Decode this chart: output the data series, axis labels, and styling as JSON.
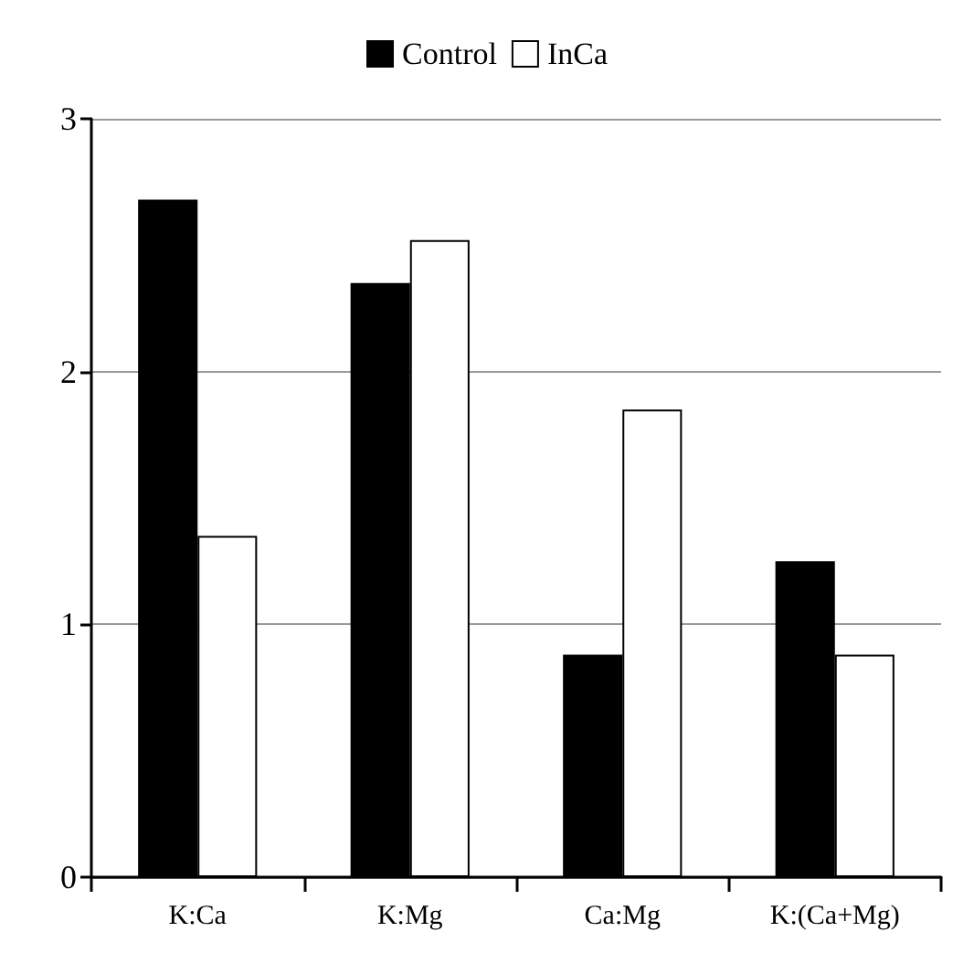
{
  "chart_data": {
    "type": "bar",
    "categories": [
      "K:Ca",
      "K:Mg",
      "Ca:Mg",
      "K:(Ca+Mg)"
    ],
    "series": [
      {
        "name": "Control",
        "color": "#000000",
        "values": [
          2.68,
          2.35,
          0.88,
          1.25
        ]
      },
      {
        "name": "InCa",
        "color": "#ffffff",
        "values": [
          1.35,
          2.52,
          1.85,
          0.88
        ]
      }
    ],
    "ylim": [
      0,
      3
    ],
    "yticks": [
      0,
      1,
      2,
      3
    ],
    "grid": "y",
    "legend": "top"
  }
}
